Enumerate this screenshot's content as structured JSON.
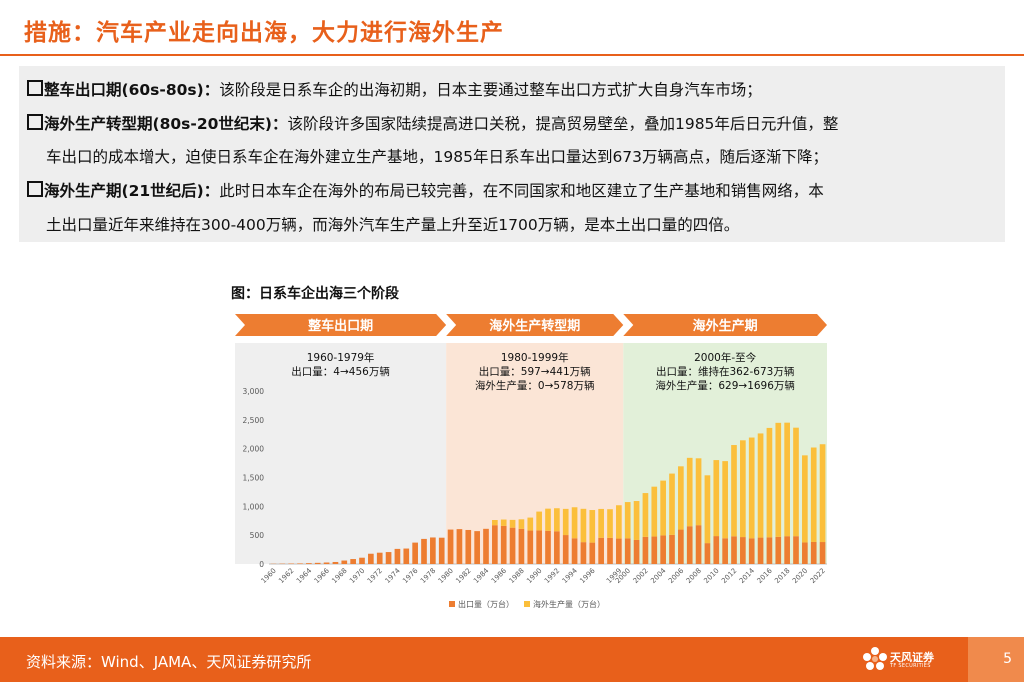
{
  "title": "措施：汽车产业走向出海，大力进行海外生产",
  "summary": {
    "p1": {
      "head": "整车出口期(60s-80s)：",
      "text": "该阶段是日系车企的出海初期，日本主要通过整车出口方式扩大自身汽车市场；"
    },
    "p2": {
      "head": "海外生产转型期(80s-20世纪末)：",
      "text": "该阶段许多国家陆续提高进口关税，提高贸易壁垒，叠加1985年后日元升值，整",
      "cont": "车出口的成本增大，迫使日系车企在海外建立生产基地，1985年日系车出口量达到673万辆高点，随后逐渐下降；"
    },
    "p3": {
      "head": "海外生产期(21世纪后)：",
      "text": "此时日本车企在海外的布局已较完善，在不同国家和地区建立了生产基地和销售网络，本",
      "cont": "土出口量近年来维持在300-400万辆，而海外汽车生产量上升至近1700万辆，是本土出口量的四倍。"
    }
  },
  "figure_title": "图：日系车企出海三个阶段",
  "chart_data": {
    "type": "bar",
    "stacked": true,
    "phases": [
      {
        "label": "整车出口期",
        "years": "1960-1979年",
        "desc1": "出口量：4→456万辆",
        "desc2": "",
        "bg_color": "#efefef",
        "start_year": 1960,
        "end_year": 1979
      },
      {
        "label": "海外生产转型期",
        "years": "1980-1999年",
        "desc1": "出口量：597→441万辆",
        "desc2": "海外生产量：0→578万辆",
        "bg_color": "#fbe5d6",
        "start_year": 1980,
        "end_year": 1999
      },
      {
        "label": "海外生产期",
        "years": "2000年-至今",
        "desc1": "出口量：维持在362-673万辆",
        "desc2": "海外生产量：629→1696万辆",
        "bg_color": "#e2f0d9",
        "start_year": 2000,
        "end_year": 2022
      }
    ],
    "x": [
      1960,
      1961,
      1962,
      1963,
      1964,
      1965,
      1966,
      1967,
      1968,
      1969,
      1970,
      1971,
      1972,
      1973,
      1974,
      1975,
      1976,
      1977,
      1978,
      1979,
      1980,
      1981,
      1982,
      1983,
      1984,
      1985,
      1986,
      1987,
      1988,
      1989,
      1990,
      1991,
      1992,
      1993,
      1994,
      1995,
      1996,
      1997,
      1998,
      1999,
      2000,
      2001,
      2002,
      2003,
      2004,
      2005,
      2006,
      2007,
      2008,
      2009,
      2010,
      2011,
      2012,
      2013,
      2014,
      2015,
      2016,
      2017,
      2018,
      2019,
      2020,
      2021,
      2022
    ],
    "xtick_labels": [
      "1960",
      "1962",
      "1964",
      "1966",
      "1968",
      "1970",
      "1972",
      "1974",
      "1976",
      "1978",
      "1980",
      "1982",
      "1984",
      "1986",
      "1988",
      "1990",
      "1992",
      "1994",
      "1996",
      "1999",
      "2000",
      "2002",
      "2004",
      "2006",
      "2008",
      "2010",
      "2012",
      "2014",
      "2016",
      "2018",
      "2020",
      "2022"
    ],
    "series": [
      {
        "name": "出口量（万台）",
        "color": "#ed7d31",
        "values": [
          4,
          6,
          8,
          10,
          15,
          20,
          26,
          35,
          60,
          86,
          109,
          178,
          196,
          207,
          262,
          268,
          371,
          435,
          460,
          456,
          597,
          605,
          590,
          570,
          610,
          673,
          661,
          630,
          610,
          580,
          583,
          575,
          567,
          502,
          446,
          379,
          371,
          455,
          453,
          441,
          445,
          417,
          470,
          476,
          496,
          505,
          597,
          655,
          673,
          362,
          484,
          446,
          480,
          467,
          446,
          458,
          463,
          471,
          482,
          482,
          374,
          382,
          381
        ]
      },
      {
        "name": "海外生产量（万台）",
        "color": "#fbbf3b",
        "values": [
          0,
          0,
          0,
          0,
          0,
          0,
          0,
          0,
          0,
          0,
          0,
          0,
          0,
          0,
          0,
          0,
          0,
          0,
          0,
          0,
          0,
          0,
          0,
          0,
          0,
          90,
          110,
          135,
          165,
          225,
          326,
          385,
          400,
          454,
          538,
          578,
          565,
          500,
          497,
          578,
          629,
          675,
          760,
          865,
          950,
          1063,
          1097,
          1186,
          1160,
          1176,
          1318,
          1338,
          1583,
          1678,
          1747,
          1806,
          1897,
          1977,
          1969,
          1882,
          1510,
          1638,
          1696
        ]
      }
    ],
    "ylim": [
      0,
      3000
    ],
    "yticks": [
      "0",
      "500",
      "1,000",
      "1,500",
      "2,000",
      "2,500",
      "3,000"
    ],
    "xlabel": "",
    "ylabel": ""
  },
  "footer": {
    "source": "资料来源：Wind、JAMA、天风证券研究所",
    "logo_name": "天风证券",
    "logo_en": "TF SECURITIES",
    "page": "5"
  },
  "colors": {
    "accent": "#e8601b",
    "export": "#ed7d31",
    "overseas": "#fbbf3b"
  }
}
